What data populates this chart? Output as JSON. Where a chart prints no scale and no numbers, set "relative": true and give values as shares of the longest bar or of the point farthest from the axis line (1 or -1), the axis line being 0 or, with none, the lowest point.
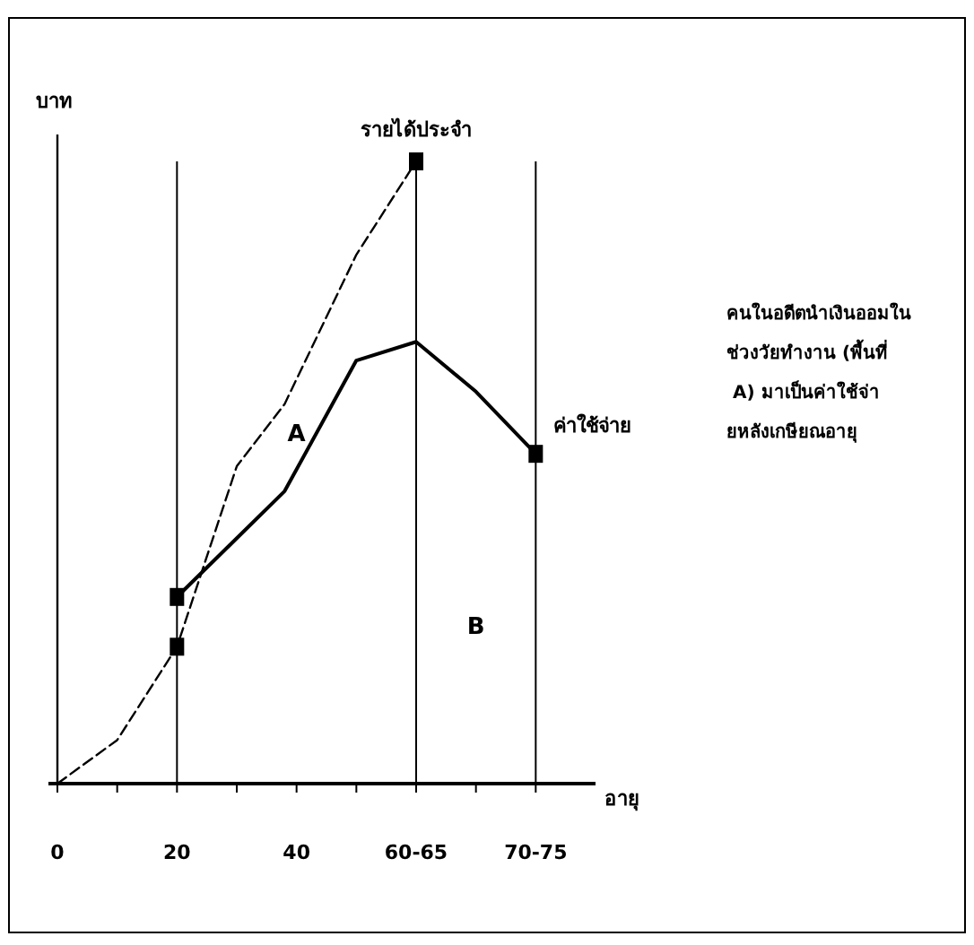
{
  "chart_data": {
    "type": "line",
    "xlabel": "อายุ",
    "ylabel": "บาท",
    "relative": true,
    "xlim": [
      0,
      90
    ],
    "xticks": [
      0,
      {
        "value": 10,
        "label": null
      },
      20,
      {
        "value": 30,
        "label": null
      },
      40,
      {
        "value": 50,
        "label": null
      },
      {
        "value": 60,
        "label": "60-65"
      },
      {
        "value": 70,
        "label": null
      },
      {
        "value": 80,
        "label": "70-75"
      }
    ],
    "series": [
      {
        "name": "รายได้ประจำ",
        "color": "#000000",
        "line_style": "dashed",
        "x": [
          0,
          10,
          20,
          30,
          38,
          50,
          60
        ],
        "values": [
          0,
          0.07,
          0.22,
          0.51,
          0.61,
          0.85,
          1
        ]
      },
      {
        "name": "ค่าใช้จ่าย",
        "color": "#000000",
        "line_style": "solid",
        "x": [
          20,
          38,
          50,
          60,
          70,
          80
        ],
        "values": [
          0.3,
          0.47,
          0.68,
          0.71,
          0.63,
          0.53
        ]
      },
      {
        "type": "scatter",
        "color": "#000000",
        "marker": "square",
        "x": [
          20,
          20,
          60,
          80
        ],
        "values": [
          0.22,
          0.3,
          1,
          0.53
        ]
      }
    ],
    "legend": false,
    "grid": false,
    "ref_lines": [
      {
        "axis": "x",
        "value": 20,
        "label": null
      },
      {
        "axis": "x",
        "value": 60,
        "label": null
      },
      {
        "axis": "x",
        "value": 80,
        "label": null
      }
    ],
    "annotations": [
      "A",
      "B",
      "คนในอดีตนำเงินออมในช่วงวัยทำงาน (พื้นที่ A) มาเป็นค่าใช้จ่ายหลังเกษียณอายุ"
    ]
  }
}
